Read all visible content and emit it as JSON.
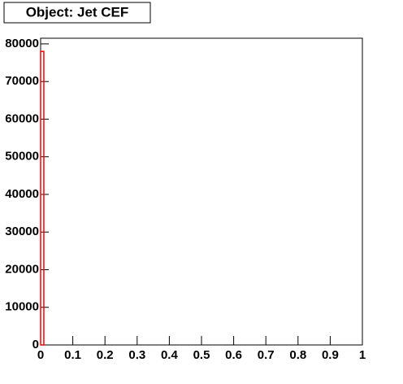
{
  "chart_data": {
    "type": "histogram",
    "title": "Object: Jet CEF",
    "color": "#ff0000",
    "bins": [
      0,
      0.01,
      0.02,
      0.03,
      0.04,
      0.05,
      0.06,
      0.07,
      0.08,
      0.09,
      0.1,
      0.11,
      0.12,
      0.13,
      0.14,
      0.15,
      0.16,
      0.17,
      0.18,
      0.19,
      0.2,
      0.21,
      0.22,
      0.23,
      0.24,
      0.25,
      0.26,
      0.27,
      0.28,
      0.29,
      0.3,
      0.31,
      0.32,
      0.33,
      0.34,
      0.35,
      0.36,
      0.37,
      0.38,
      0.39,
      0.4,
      0.41,
      0.42,
      0.43,
      0.44,
      0.45,
      0.46,
      0.47,
      0.48,
      0.49,
      0.5,
      0.51,
      0.52,
      0.53,
      0.54,
      0.55,
      0.56,
      0.57,
      0.58,
      0.59,
      0.6,
      0.61,
      0.62,
      0.63,
      0.64,
      0.65,
      0.66,
      0.67,
      0.68,
      0.69,
      0.7,
      0.71,
      0.72,
      0.73,
      0.74,
      0.75,
      0.76,
      0.77,
      0.78,
      0.79,
      0.8,
      0.81,
      0.82,
      0.83,
      0.84,
      0.85,
      0.86,
      0.87,
      0.88,
      0.89,
      0.9,
      0.91,
      0.92,
      0.93,
      0.94,
      0.95,
      0.96,
      0.97,
      0.98,
      0.99,
      1
    ],
    "values": [
      78000,
      0,
      0,
      0,
      0,
      0,
      0,
      0,
      0,
      0,
      0,
      0,
      0,
      0,
      0,
      0,
      0,
      0,
      0,
      0,
      0,
      0,
      0,
      0,
      0,
      0,
      0,
      0,
      0,
      0,
      0,
      0,
      0,
      0,
      0,
      0,
      0,
      0,
      0,
      0,
      0,
      0,
      0,
      0,
      0,
      0,
      0,
      0,
      0,
      0,
      0,
      0,
      0,
      0,
      0,
      0,
      0,
      0,
      0,
      0,
      0,
      0,
      0,
      0,
      0,
      0,
      0,
      0,
      0,
      0,
      0,
      0,
      0,
      0,
      0,
      0,
      0,
      0,
      0,
      0,
      0,
      0,
      0,
      0,
      0,
      0,
      0,
      0,
      0,
      0,
      0,
      0,
      0,
      0,
      0,
      0,
      0,
      0,
      0,
      0
    ],
    "xlim": [
      0,
      1
    ],
    "xticks": [
      0,
      0.1,
      0.2,
      0.3,
      0.4,
      0.5,
      0.6,
      0.7,
      0.8,
      0.9,
      1
    ],
    "ylim": [
      0,
      81500
    ],
    "yticks": [
      0,
      10000,
      20000,
      30000,
      40000,
      50000,
      60000,
      70000,
      80000
    ]
  }
}
